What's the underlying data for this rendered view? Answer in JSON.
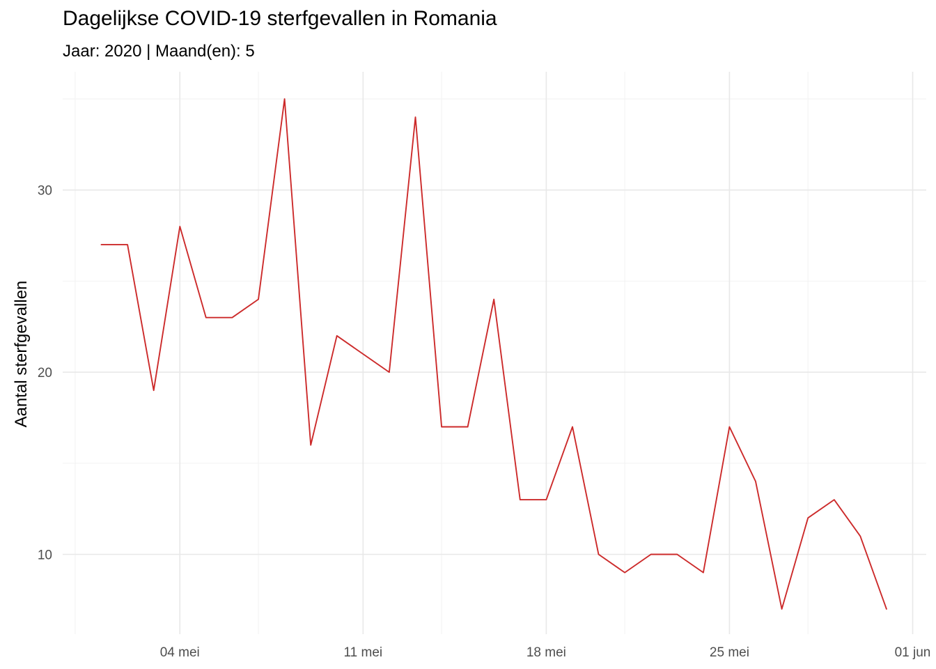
{
  "chart_data": {
    "type": "line",
    "title": "Dagelijkse COVID-19 sterfgevallen in Romania",
    "subtitle": "Jaar: 2020 | Maand(en): 5",
    "xlabel": "",
    "ylabel": "Aantal sterfgevallen",
    "x_type": "date",
    "xlim": [
      "2020-04-28",
      "2020-06-01"
    ],
    "ylim": [
      6,
      35.5
    ],
    "grid": true,
    "x_ticks": [
      {
        "value": "2020-05-04",
        "label": "04 mei"
      },
      {
        "value": "2020-05-11",
        "label": "11 mei"
      },
      {
        "value": "2020-05-18",
        "label": "18 mei"
      },
      {
        "value": "2020-05-25",
        "label": "25 mei"
      },
      {
        "value": "2020-06-01",
        "label": "01 jun"
      }
    ],
    "x_minor_ticks": [
      "2020-04-30",
      "2020-05-07",
      "2020-05-14",
      "2020-05-21",
      "2020-05-28"
    ],
    "y_ticks": [
      {
        "value": 10,
        "label": "10"
      },
      {
        "value": 20,
        "label": "20"
      },
      {
        "value": 30,
        "label": "30"
      }
    ],
    "y_minor_ticks": [
      15,
      25,
      35
    ],
    "series": [
      {
        "color": "#cc2a2a",
        "x": [
          "2020-05-01",
          "2020-05-02",
          "2020-05-03",
          "2020-05-04",
          "2020-05-05",
          "2020-05-06",
          "2020-05-07",
          "2020-05-08",
          "2020-05-09",
          "2020-05-10",
          "2020-05-11",
          "2020-05-12",
          "2020-05-13",
          "2020-05-14",
          "2020-05-15",
          "2020-05-16",
          "2020-05-17",
          "2020-05-18",
          "2020-05-19",
          "2020-05-20",
          "2020-05-21",
          "2020-05-22",
          "2020-05-23",
          "2020-05-24",
          "2020-05-25",
          "2020-05-26",
          "2020-05-27",
          "2020-05-28",
          "2020-05-29",
          "2020-05-30",
          "2020-05-31"
        ],
        "values": [
          27,
          27,
          19,
          28,
          23,
          23,
          24,
          35,
          16,
          22,
          21,
          20,
          34,
          17,
          17,
          24,
          13,
          13,
          17,
          10,
          9,
          10,
          10,
          9,
          17,
          14,
          7,
          12,
          13,
          11,
          7
        ]
      }
    ]
  }
}
